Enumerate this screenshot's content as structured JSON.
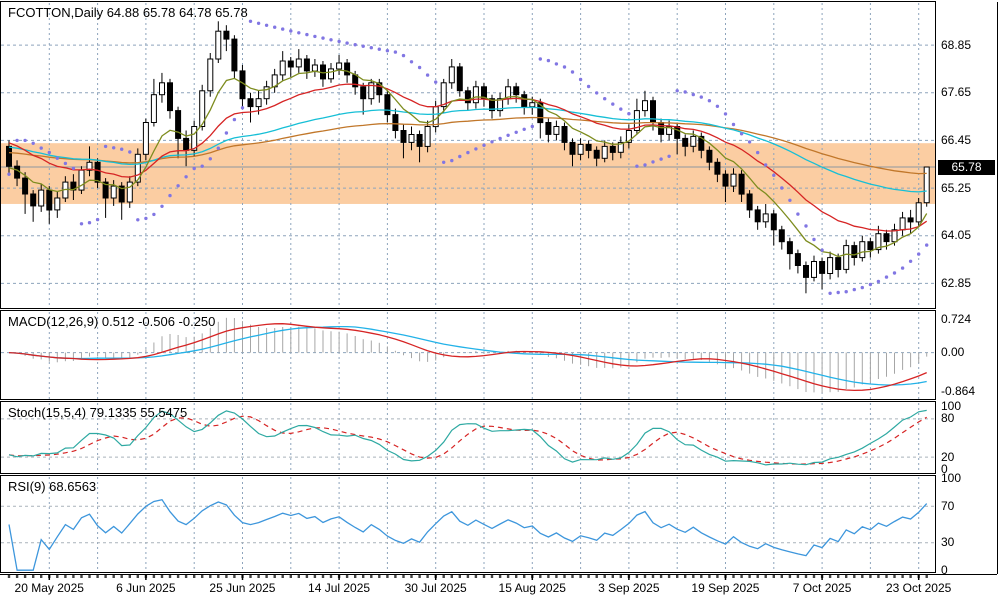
{
  "chart_data": {
    "type": "candlestick",
    "symbol": "FCOTTON",
    "timeframe": "Daily",
    "title_line": "FCOTTON,Daily 64.88 65.78 64.78 65.78",
    "quote": {
      "open": "64.88",
      "high": "65.78",
      "low": "64.78",
      "close": "65.78"
    },
    "current_price": 65.78,
    "current_price_label": "65.78",
    "price_axis": {
      "ylim": [
        62.23,
        69.91
      ],
      "ticks": [
        {
          "label": "68.85",
          "value": 68.85
        },
        {
          "label": "67.65",
          "value": 67.65
        },
        {
          "label": "66.45",
          "value": 66.45
        },
        {
          "label": "65.25",
          "value": 65.25
        },
        {
          "label": "64.05",
          "value": 64.05
        },
        {
          "label": "62.85",
          "value": 62.85
        }
      ]
    },
    "highlight_zone": {
      "from": 64.85,
      "to": 66.38,
      "color": "#fbcda2"
    },
    "x_axis": {
      "tick_indices": [
        5,
        17,
        29,
        41,
        53,
        65,
        77,
        89,
        101,
        113
      ],
      "labels": [
        "20 May 2025",
        "6 Jun 2025",
        "25 Jun 2025",
        "14 Jul 2025",
        "30 Jul 2025",
        "15 Aug 2025",
        "3 Sep 2025",
        "19 Sep 2025",
        "7 Oct 2025",
        "23 Oct 2025"
      ]
    },
    "candles": [
      [
        66.3,
        66.45,
        65.6,
        65.8
      ],
      [
        65.8,
        65.95,
        65.3,
        65.5
      ],
      [
        65.5,
        65.65,
        64.6,
        65.1
      ],
      [
        65.1,
        65.2,
        64.4,
        64.8
      ],
      [
        64.8,
        65.35,
        64.65,
        65.2
      ],
      [
        65.2,
        65.3,
        64.35,
        64.7
      ],
      [
        64.7,
        65.15,
        64.5,
        65.0
      ],
      [
        65.0,
        65.55,
        64.9,
        65.4
      ],
      [
        65.4,
        65.6,
        64.95,
        65.2
      ],
      [
        65.2,
        65.8,
        65.1,
        65.7
      ],
      [
        65.7,
        66.3,
        65.55,
        65.9
      ],
      [
        65.9,
        66.0,
        65.25,
        65.4
      ],
      [
        65.4,
        65.5,
        64.5,
        65.0
      ],
      [
        65.0,
        65.45,
        64.8,
        65.3
      ],
      [
        65.3,
        65.4,
        64.45,
        64.9
      ],
      [
        64.9,
        65.55,
        64.75,
        65.4
      ],
      [
        65.4,
        66.25,
        65.3,
        66.1
      ],
      [
        66.1,
        67.0,
        65.95,
        66.9
      ],
      [
        66.9,
        68.0,
        66.8,
        67.6
      ],
      [
        67.6,
        68.15,
        67.4,
        67.9
      ],
      [
        67.9,
        68.0,
        67.0,
        67.2
      ],
      [
        67.2,
        67.3,
        66.0,
        66.5
      ],
      [
        66.5,
        66.7,
        65.8,
        66.2
      ],
      [
        66.2,
        66.95,
        66.05,
        66.8
      ],
      [
        66.8,
        67.85,
        66.7,
        67.7
      ],
      [
        67.7,
        68.65,
        67.55,
        68.5
      ],
      [
        68.5,
        69.45,
        68.4,
        69.2
      ],
      [
        69.2,
        69.35,
        68.7,
        69.0
      ],
      [
        69.0,
        69.1,
        68.0,
        68.2
      ],
      [
        68.2,
        68.35,
        67.3,
        67.5
      ],
      [
        67.5,
        67.65,
        66.9,
        67.3
      ],
      [
        67.3,
        67.7,
        67.1,
        67.5
      ],
      [
        67.5,
        67.95,
        67.35,
        67.8
      ],
      [
        67.8,
        68.25,
        67.65,
        68.1
      ],
      [
        68.1,
        68.7,
        67.95,
        68.45
      ],
      [
        68.45,
        68.55,
        68.05,
        68.3
      ],
      [
        68.3,
        68.75,
        68.15,
        68.5
      ],
      [
        68.5,
        68.6,
        68.0,
        68.2
      ],
      [
        68.2,
        68.5,
        68.05,
        68.35
      ],
      [
        68.35,
        68.45,
        67.8,
        68.0
      ],
      [
        68.0,
        68.4,
        67.9,
        68.25
      ],
      [
        68.25,
        68.6,
        68.1,
        68.4
      ],
      [
        68.4,
        68.5,
        67.9,
        68.1
      ],
      [
        68.1,
        68.2,
        67.6,
        67.8
      ],
      [
        67.8,
        67.9,
        67.1,
        67.5
      ],
      [
        67.5,
        68.0,
        67.35,
        67.9
      ],
      [
        67.9,
        68.0,
        67.4,
        67.6
      ],
      [
        67.6,
        67.7,
        66.9,
        67.1
      ],
      [
        67.1,
        67.25,
        66.5,
        66.7
      ],
      [
        66.7,
        66.85,
        66.0,
        66.4
      ],
      [
        66.4,
        66.8,
        66.2,
        66.6
      ],
      [
        66.6,
        66.7,
        65.9,
        66.3
      ],
      [
        66.3,
        66.95,
        66.15,
        66.8
      ],
      [
        66.8,
        67.45,
        66.65,
        67.3
      ],
      [
        67.3,
        68.0,
        67.15,
        67.9
      ],
      [
        67.9,
        68.5,
        67.75,
        68.3
      ],
      [
        68.3,
        68.4,
        67.55,
        67.7
      ],
      [
        67.7,
        67.8,
        67.2,
        67.4
      ],
      [
        67.4,
        67.95,
        67.25,
        67.8
      ],
      [
        67.8,
        67.9,
        67.3,
        67.5
      ],
      [
        67.5,
        67.6,
        67.0,
        67.2
      ],
      [
        67.2,
        67.65,
        67.05,
        67.5
      ],
      [
        67.5,
        68.0,
        67.35,
        67.8
      ],
      [
        67.8,
        67.9,
        67.4,
        67.6
      ],
      [
        67.6,
        67.7,
        67.1,
        67.3
      ],
      [
        67.3,
        67.55,
        67.1,
        67.4
      ],
      [
        67.4,
        67.5,
        66.5,
        66.9
      ],
      [
        66.9,
        67.0,
        66.4,
        66.6
      ],
      [
        66.6,
        66.95,
        66.45,
        66.8
      ],
      [
        66.8,
        66.9,
        66.2,
        66.4
      ],
      [
        66.4,
        66.5,
        65.8,
        66.1
      ],
      [
        66.1,
        66.5,
        65.95,
        66.35
      ],
      [
        66.35,
        66.45,
        66.0,
        66.2
      ],
      [
        66.2,
        66.3,
        65.8,
        66.0
      ],
      [
        66.0,
        66.45,
        65.9,
        66.3
      ],
      [
        66.3,
        66.4,
        65.95,
        66.15
      ],
      [
        66.15,
        66.55,
        66.0,
        66.4
      ],
      [
        66.4,
        66.85,
        66.25,
        66.7
      ],
      [
        66.7,
        67.5,
        66.6,
        67.2
      ],
      [
        67.2,
        67.7,
        67.05,
        67.45
      ],
      [
        67.45,
        67.55,
        66.7,
        66.9
      ],
      [
        66.9,
        67.0,
        66.4,
        66.6
      ],
      [
        66.6,
        66.95,
        66.45,
        66.8
      ],
      [
        66.8,
        66.9,
        66.1,
        66.5
      ],
      [
        66.5,
        66.6,
        66.05,
        66.3
      ],
      [
        66.3,
        66.7,
        66.15,
        66.55
      ],
      [
        66.55,
        66.65,
        66.0,
        66.2
      ],
      [
        66.2,
        66.3,
        65.7,
        65.9
      ],
      [
        65.9,
        66.0,
        65.4,
        65.6
      ],
      [
        65.6,
        65.7,
        64.9,
        65.3
      ],
      [
        65.3,
        65.75,
        65.15,
        65.6
      ],
      [
        65.6,
        65.7,
        64.9,
        65.1
      ],
      [
        65.1,
        65.2,
        64.5,
        64.7
      ],
      [
        64.7,
        64.8,
        64.2,
        64.4
      ],
      [
        64.4,
        64.85,
        64.25,
        64.6
      ],
      [
        64.6,
        64.7,
        63.8,
        64.2
      ],
      [
        64.2,
        64.3,
        63.7,
        63.9
      ],
      [
        63.9,
        64.0,
        63.2,
        63.6
      ],
      [
        63.6,
        63.7,
        63.1,
        63.3
      ],
      [
        63.3,
        63.4,
        62.6,
        63.0
      ],
      [
        63.0,
        63.55,
        62.9,
        63.4
      ],
      [
        63.4,
        63.5,
        62.7,
        63.1
      ],
      [
        63.1,
        63.65,
        62.95,
        63.5
      ],
      [
        63.5,
        63.6,
        63.0,
        63.2
      ],
      [
        63.2,
        63.95,
        63.1,
        63.8
      ],
      [
        63.8,
        63.9,
        63.3,
        63.5
      ],
      [
        63.5,
        64.05,
        63.4,
        63.9
      ],
      [
        63.9,
        64.0,
        63.5,
        63.7
      ],
      [
        63.7,
        64.3,
        63.6,
        64.1
      ],
      [
        64.1,
        64.2,
        63.7,
        63.9
      ],
      [
        63.9,
        64.35,
        63.8,
        64.2
      ],
      [
        64.2,
        64.65,
        64.05,
        64.5
      ],
      [
        64.5,
        64.7,
        64.1,
        64.4
      ],
      [
        64.4,
        65.0,
        64.3,
        64.88
      ],
      [
        64.88,
        65.78,
        64.78,
        65.78
      ]
    ],
    "overlays": {
      "moving_averages": [
        {
          "name": "ma-fast",
          "period": 8,
          "seed": 65.75,
          "color": "#7d8c1e"
        },
        {
          "name": "ma-medium",
          "period": 21,
          "seed": 66.45,
          "color": "#d62424"
        },
        {
          "name": "ma-slow",
          "period": 55,
          "seed": 66.3,
          "color": "#16bfd6"
        },
        {
          "name": "ma-slowest",
          "period": 89,
          "seed": 66.15,
          "color": "#c1772a"
        }
      ],
      "parabolic_sar": {
        "step": 0.02,
        "max": 0.2,
        "color": "#8176e3"
      }
    },
    "panels": {
      "macd": {
        "label": "MACD(12,26,9) 0.512 -0.506 -0.250",
        "values": [
          "0.512",
          "-0.506",
          "-0.250"
        ],
        "ylim": [
          -1.03,
          0.9
        ],
        "axis": [
          {
            "label": "0.724",
            "value": 0.724
          },
          {
            "label": "0.00",
            "value": 0
          },
          {
            "label": "-0.864",
            "value": -0.864
          }
        ],
        "grid": [
          0
        ],
        "colors": {
          "histogram": "#a6a6a6",
          "line": "#d62424",
          "signal": "#23b2e8"
        }
      },
      "stoch": {
        "label": "Stoch(15,5,4) 79.1335 55.5475",
        "values": [
          "79.1335",
          "55.5475"
        ],
        "k_period": 15,
        "slowing": 4,
        "d_period": 5,
        "ylim": [
          -5,
          105
        ],
        "axis": [
          {
            "label": "100",
            "value": 100
          },
          {
            "label": "80",
            "value": 80
          },
          {
            "label": "20",
            "value": 20
          },
          {
            "label": "0",
            "value": 0
          }
        ],
        "grid": [
          80,
          20
        ],
        "colors": {
          "k": "#2ea9a2",
          "d": "#d62424"
        }
      },
      "rsi": {
        "label": "RSI(9) 68.6563",
        "values": [
          "68.6563"
        ],
        "period": 9,
        "ylim": [
          -2,
          102
        ],
        "axis": [
          {
            "label": "100",
            "value": 100
          },
          {
            "label": "70",
            "value": 70
          },
          {
            "label": "30",
            "value": 30
          },
          {
            "label": "0",
            "value": 0
          }
        ],
        "grid": [
          70,
          30
        ],
        "colors": {
          "line": "#3d96dc"
        }
      }
    },
    "colors": {
      "background": "#ffffff",
      "panel_border": "#000000",
      "grid": "#8da4bc",
      "level_grid": "#a9b2ba",
      "bull": "#ffffff",
      "bear": "#000000",
      "candle_outline": "#000000",
      "price_line": "#8c96a0",
      "price_tag_bg": "#000000",
      "price_tag_text": "#ffffff",
      "text": "#000000"
    }
  }
}
